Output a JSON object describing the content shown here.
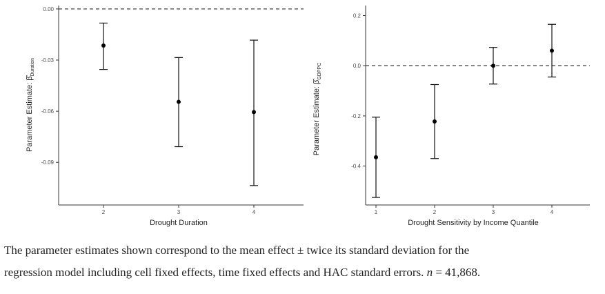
{
  "chart_data": [
    {
      "type": "scatter",
      "xlabel": "Drought Duration",
      "ylabel": "Parameter Estimate: β̂",
      "ylabel_sub": "Duration",
      "x": [
        "2",
        "3",
        "4"
      ],
      "y_ticks": [
        "0.00",
        "-0.03",
        "-0.06",
        "-0.09"
      ],
      "ylim": [
        -0.115,
        0.002
      ],
      "points": [
        {
          "x": "2",
          "estimate": -0.0215,
          "lower": -0.0355,
          "upper": -0.0083
        },
        {
          "x": "3",
          "estimate": -0.0545,
          "lower": -0.0808,
          "upper": -0.0285
        },
        {
          "x": "4",
          "estimate": -0.0605,
          "lower": -0.1036,
          "upper": -0.0183
        }
      ],
      "reference_line": 0,
      "grid": false
    },
    {
      "type": "scatter",
      "xlabel": "Drought Sensitivity by Income Quantile",
      "ylabel": "Parameter Estimate: β̂",
      "ylabel_sub": "GDPPC",
      "x": [
        "1",
        "2",
        "3",
        "4"
      ],
      "y_ticks": [
        "0.2",
        "0.0",
        "-0.2",
        "-0.4"
      ],
      "ylim": [
        -0.555,
        0.24
      ],
      "points": [
        {
          "x": "1",
          "estimate": -0.365,
          "lower": -0.525,
          "upper": -0.205
        },
        {
          "x": "2",
          "estimate": -0.222,
          "lower": -0.37,
          "upper": -0.075
        },
        {
          "x": "3",
          "estimate": 0.0,
          "lower": -0.073,
          "upper": 0.073
        },
        {
          "x": "4",
          "estimate": 0.06,
          "lower": -0.045,
          "upper": 0.165
        }
      ],
      "reference_line": 0,
      "grid": false
    }
  ],
  "caption": {
    "line1": "The parameter estimates shown correspond to the mean effect ± twice its standard deviation for the",
    "line2_start": "regression model including cell fixed effects, time fixed effects and HAC standard errors.",
    "n_label": "n",
    "n_value": "= 41,868."
  },
  "colors": {
    "axis": "#333333",
    "text": "#4d4d4d",
    "point": "#000000"
  }
}
